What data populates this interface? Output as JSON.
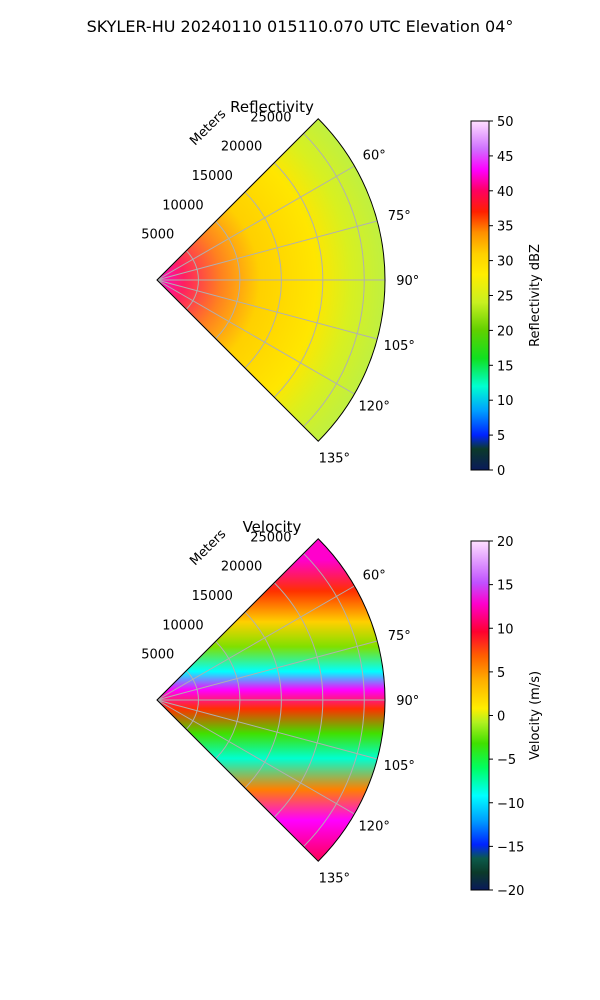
{
  "figure": {
    "suptitle": "SKYLER-HU  20240110  015110.070 UTC Elevation 04°"
  },
  "chart_data": [
    {
      "type": "heatmap",
      "projection": "polar-sector",
      "title": "Reflectivity",
      "radial_label": "Meters",
      "radial_ticks": [
        "5000",
        "10000",
        "15000",
        "20000",
        "25000"
      ],
      "radial_values": [
        5000,
        10000,
        15000,
        20000,
        25000
      ],
      "rmax": 27500,
      "azimuth_range_deg": [
        45,
        135
      ],
      "azimuth_ticks": [
        "60°",
        "75°",
        "90°",
        "105°",
        "120°",
        "135°"
      ],
      "azimuth_values": [
        60,
        75,
        90,
        105,
        120,
        135
      ],
      "grid": true,
      "colorbar": {
        "label": "Reflectivity dBZ",
        "range": [
          0,
          50
        ],
        "ticks": [
          "0",
          "5",
          "10",
          "15",
          "20",
          "25",
          "30",
          "35",
          "40",
          "45",
          "50"
        ],
        "tick_values": [
          0,
          5,
          10,
          15,
          20,
          25,
          30,
          35,
          40,
          45,
          50
        ]
      }
    },
    {
      "type": "heatmap",
      "projection": "polar-sector",
      "title": "Velocity",
      "radial_label": "Meters",
      "radial_ticks": [
        "5000",
        "10000",
        "15000",
        "20000",
        "25000"
      ],
      "radial_values": [
        5000,
        10000,
        15000,
        20000,
        25000
      ],
      "rmax": 27500,
      "azimuth_range_deg": [
        45,
        135
      ],
      "azimuth_ticks": [
        "60°",
        "75°",
        "90°",
        "105°",
        "120°",
        "135°"
      ],
      "azimuth_values": [
        60,
        75,
        90,
        105,
        120,
        135
      ],
      "grid": true,
      "colorbar": {
        "label": "Velocity (m/s)",
        "range": [
          -20,
          20
        ],
        "ticks": [
          "−20",
          "−15",
          "−10",
          "−5",
          "0",
          "5",
          "10",
          "15",
          "20"
        ],
        "tick_values": [
          -20,
          -15,
          -10,
          -5,
          0,
          5,
          10,
          15,
          20
        ]
      }
    }
  ]
}
